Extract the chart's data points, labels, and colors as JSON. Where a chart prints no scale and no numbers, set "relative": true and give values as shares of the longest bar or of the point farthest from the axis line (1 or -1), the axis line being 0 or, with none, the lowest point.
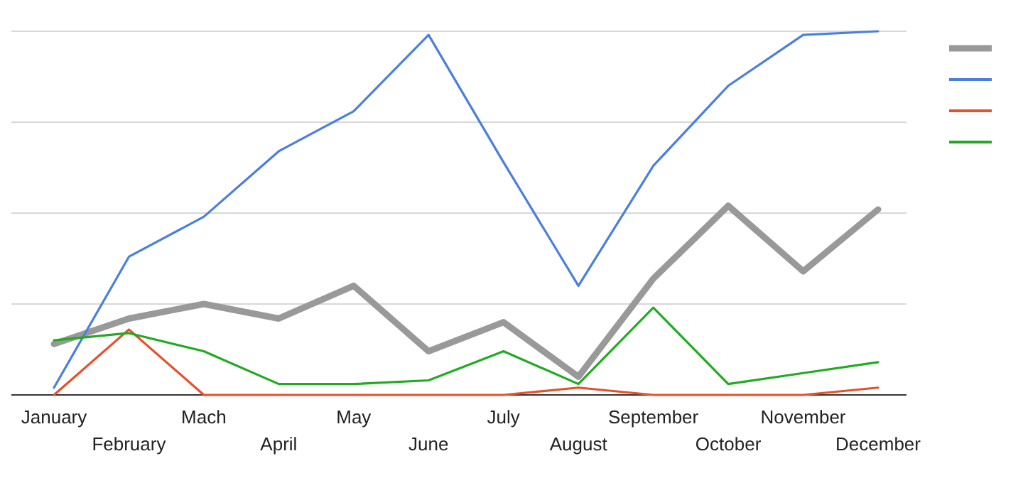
{
  "chart_data": {
    "type": "line",
    "relative": true,
    "categories": [
      "January",
      "February",
      "Mach",
      "April",
      "May",
      "June",
      "July",
      "August",
      "September",
      "October",
      "November",
      "December"
    ],
    "series": [
      {
        "color": "#999999",
        "values": [
          0.14,
          0.21,
          0.25,
          0.21,
          0.3,
          0.12,
          0.2,
          0.05,
          0.32,
          0.52,
          0.34,
          0.51
        ]
      },
      {
        "color": "#4a7fe0",
        "values": [
          0.02,
          0.38,
          0.49,
          0.67,
          0.78,
          0.99,
          0.64,
          0.3,
          0.63,
          0.85,
          0.99,
          1.0
        ]
      },
      {
        "color": "#e8502a",
        "values": [
          0,
          0.18,
          0,
          0,
          0,
          0,
          0,
          0.02,
          0,
          0,
          0,
          0.02
        ]
      },
      {
        "color": "#22aa22",
        "values": [
          0.15,
          0.17,
          0.12,
          0.03,
          0.03,
          0.04,
          0.12,
          0.03,
          0.24,
          0.03,
          0.06,
          0.09
        ]
      }
    ],
    "grid": "y",
    "marker": "none",
    "line_style": "solid"
  }
}
